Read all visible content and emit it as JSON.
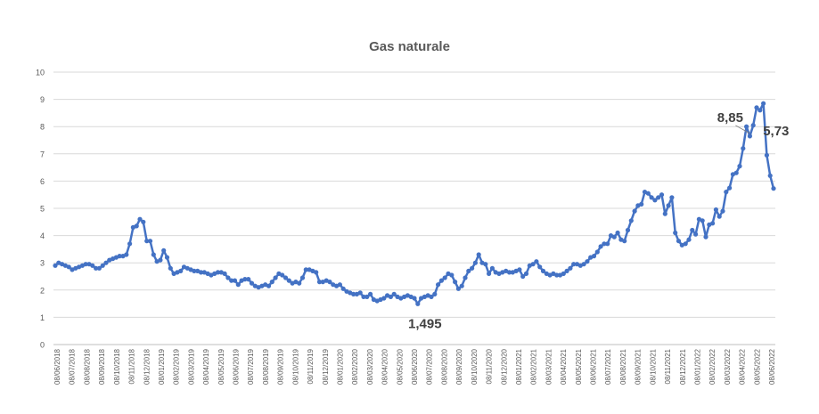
{
  "chart_data": {
    "type": "line",
    "title": "Gas naturale",
    "xlabel": "",
    "ylabel": "",
    "ylim": [
      0,
      10
    ],
    "y_ticks": [
      "0",
      "1",
      "2",
      "3",
      "4",
      "5",
      "6",
      "7",
      "8",
      "9",
      "10"
    ],
    "grid": true,
    "legend": "none",
    "colors": {
      "line": "#4472C4",
      "grid": "#d9d9d9",
      "text": "#595959"
    },
    "x_ticks": [
      "08/06/2018",
      "08/07/2018",
      "08/08/2018",
      "08/09/2018",
      "08/10/2018",
      "08/11/2018",
      "08/12/2018",
      "08/01/2019",
      "08/02/2019",
      "08/03/2019",
      "08/04/2019",
      "08/05/2019",
      "08/06/2019",
      "08/07/2019",
      "08/08/2019",
      "08/09/2019",
      "08/10/2019",
      "08/11/2019",
      "08/12/2019",
      "08/01/2020",
      "08/02/2020",
      "08/03/2020",
      "08/04/2020",
      "08/05/2020",
      "08/06/2020",
      "08/07/2020",
      "08/08/2020",
      "08/09/2020",
      "08/10/2020",
      "08/11/2020",
      "08/12/2020",
      "08/01/2021",
      "08/02/2021",
      "08/03/2021",
      "08/04/2021",
      "08/05/2021",
      "08/06/2021",
      "08/07/2021",
      "08/08/2021",
      "08/09/2021",
      "08/10/2021",
      "08/11/2021",
      "08/12/2021",
      "08/01/2022",
      "08/02/2022",
      "08/03/2022",
      "08/04/2022",
      "08/05/2022",
      "08/06/2022"
    ],
    "series": [
      {
        "values": [
          2.9,
          3.0,
          2.95,
          2.9,
          2.85,
          2.75,
          2.8,
          2.85,
          2.9,
          2.95,
          2.95,
          2.9,
          2.8,
          2.8,
          2.9,
          3.0,
          3.1,
          3.15,
          3.2,
          3.25,
          3.25,
          3.3,
          3.7,
          4.3,
          4.35,
          4.6,
          4.5,
          3.8,
          3.8,
          3.3,
          3.05,
          3.1,
          3.45,
          3.2,
          2.8,
          2.6,
          2.65,
          2.7,
          2.85,
          2.8,
          2.75,
          2.7,
          2.7,
          2.65,
          2.65,
          2.6,
          2.55,
          2.6,
          2.65,
          2.65,
          2.6,
          2.45,
          2.35,
          2.35,
          2.2,
          2.35,
          2.4,
          2.4,
          2.25,
          2.15,
          2.1,
          2.15,
          2.2,
          2.15,
          2.3,
          2.45,
          2.6,
          2.55,
          2.45,
          2.35,
          2.25,
          2.3,
          2.25,
          2.45,
          2.75,
          2.75,
          2.7,
          2.65,
          2.3,
          2.3,
          2.35,
          2.3,
          2.2,
          2.15,
          2.2,
          2.05,
          1.95,
          1.9,
          1.85,
          1.85,
          1.9,
          1.75,
          1.75,
          1.85,
          1.65,
          1.6,
          1.65,
          1.7,
          1.8,
          1.75,
          1.85,
          1.75,
          1.7,
          1.75,
          1.8,
          1.75,
          1.7,
          1.495,
          1.7,
          1.75,
          1.8,
          1.75,
          1.85,
          2.2,
          2.35,
          2.45,
          2.6,
          2.55,
          2.3,
          2.05,
          2.15,
          2.45,
          2.7,
          2.8,
          3.0,
          3.3,
          3.0,
          2.95,
          2.6,
          2.8,
          2.65,
          2.6,
          2.65,
          2.7,
          2.65,
          2.65,
          2.7,
          2.75,
          2.5,
          2.6,
          2.9,
          2.95,
          3.05,
          2.85,
          2.7,
          2.6,
          2.55,
          2.6,
          2.55,
          2.55,
          2.6,
          2.7,
          2.8,
          2.95,
          2.95,
          2.9,
          2.95,
          3.05,
          3.2,
          3.25,
          3.4,
          3.6,
          3.7,
          3.7,
          4.0,
          3.95,
          4.1,
          3.85,
          3.8,
          4.2,
          4.55,
          4.9,
          5.1,
          5.15,
          5.6,
          5.55,
          5.4,
          5.3,
          5.4,
          5.5,
          4.8,
          5.1,
          5.4,
          4.1,
          3.8,
          3.65,
          3.7,
          3.85,
          4.2,
          4.05,
          4.6,
          4.55,
          3.95,
          4.4,
          4.45,
          4.95,
          4.7,
          4.9,
          5.6,
          5.75,
          6.25,
          6.3,
          6.55,
          7.2,
          8.0,
          7.65,
          8.05,
          8.7,
          8.6,
          8.85,
          6.95,
          6.2,
          5.73
        ]
      }
    ],
    "annotations": [
      {
        "text": "8,85",
        "index": 205
      },
      {
        "text": "1,495",
        "index": 107
      },
      {
        "text": "5,73",
        "index": 208
      }
    ]
  }
}
